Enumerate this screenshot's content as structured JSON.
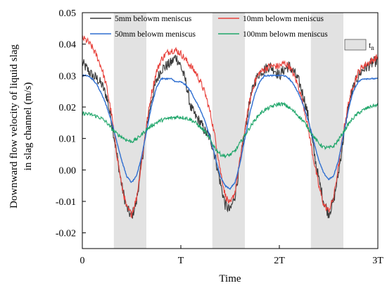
{
  "chart_data": {
    "type": "line",
    "xlabel": "Time",
    "ylabel": [
      "Downward flow velocity of liquid slag",
      "in slag channel (m/s)"
    ],
    "xlim": [
      0,
      3
    ],
    "ylim": [
      -0.025,
      0.05
    ],
    "x_ticks": [
      {
        "value": 0,
        "label": "0"
      },
      {
        "value": 1,
        "label": "T"
      },
      {
        "value": 2,
        "label": "2T"
      },
      {
        "value": 3,
        "label": "3T"
      }
    ],
    "y_ticks": [
      {
        "value": 0.05,
        "label": "0.05"
      },
      {
        "value": 0.04,
        "label": "0.04"
      },
      {
        "value": 0.03,
        "label": "0.03"
      },
      {
        "value": 0.02,
        "label": "0.02"
      },
      {
        "value": 0.01,
        "label": "0.01"
      },
      {
        "value": 0.0,
        "label": "0.00"
      },
      {
        "value": -0.01,
        "label": "-0.01"
      },
      {
        "value": -0.02,
        "label": "-0.02"
      }
    ],
    "shaded_regions": {
      "label": "t",
      "label_subscript": "n",
      "color": "#e2e2e2",
      "intervals": [
        [
          0.32,
          0.65
        ],
        [
          1.32,
          1.65
        ],
        [
          2.32,
          2.65
        ]
      ]
    },
    "grid": false,
    "legend_position": "top",
    "series": [
      {
        "name": "5mm belowm meniscus",
        "color": "#3a3a3a",
        "noise": 0.0018,
        "x": [
          0,
          0.05,
          0.1,
          0.15,
          0.2,
          0.25,
          0.3,
          0.35,
          0.4,
          0.45,
          0.5,
          0.55,
          0.6,
          0.65,
          0.7,
          0.75,
          0.8,
          0.85,
          0.9,
          0.95,
          1.0,
          1.05,
          1.1,
          1.15,
          1.2,
          1.25,
          1.3,
          1.35,
          1.4,
          1.45,
          1.5,
          1.55,
          1.6,
          1.65,
          1.7,
          1.75,
          1.8,
          1.85,
          1.9,
          1.95,
          2.0,
          2.05,
          2.1,
          2.15,
          2.2,
          2.25,
          2.3,
          2.35,
          2.4,
          2.45,
          2.5,
          2.55,
          2.6,
          2.65,
          2.7,
          2.75,
          2.8,
          2.85,
          2.9,
          2.95,
          3.0
        ],
        "y": [
          0.034,
          0.032,
          0.03,
          0.029,
          0.027,
          0.023,
          0.015,
          0.005,
          -0.005,
          -0.012,
          -0.015,
          -0.01,
          0.002,
          0.013,
          0.022,
          0.028,
          0.032,
          0.033,
          0.034,
          0.036,
          0.033,
          0.028,
          0.02,
          0.017,
          0.015,
          0.012,
          0.01,
          0.004,
          -0.004,
          -0.011,
          -0.013,
          -0.008,
          0.002,
          0.012,
          0.022,
          0.028,
          0.031,
          0.032,
          0.033,
          0.032,
          0.03,
          0.032,
          0.033,
          0.031,
          0.028,
          0.023,
          0.016,
          0.006,
          -0.003,
          -0.01,
          -0.014,
          -0.01,
          -0.001,
          0.01,
          0.02,
          0.026,
          0.03,
          0.032,
          0.033,
          0.034,
          0.035
        ]
      },
      {
        "name": "10mm belowm meniscus",
        "color": "#e8423c",
        "noise": 0.0011,
        "x": [
          0,
          0.05,
          0.1,
          0.15,
          0.2,
          0.25,
          0.3,
          0.35,
          0.4,
          0.45,
          0.5,
          0.55,
          0.6,
          0.65,
          0.7,
          0.75,
          0.8,
          0.85,
          0.9,
          0.95,
          1.0,
          1.05,
          1.1,
          1.15,
          1.2,
          1.25,
          1.3,
          1.35,
          1.4,
          1.45,
          1.5,
          1.55,
          1.6,
          1.65,
          1.7,
          1.75,
          1.8,
          1.85,
          1.9,
          1.95,
          2.0,
          2.05,
          2.1,
          2.15,
          2.2,
          2.25,
          2.3,
          2.35,
          2.4,
          2.45,
          2.5,
          2.55,
          2.6,
          2.65,
          2.7,
          2.75,
          2.8,
          2.85,
          2.9,
          2.95,
          3.0
        ],
        "y": [
          0.042,
          0.041,
          0.039,
          0.036,
          0.032,
          0.026,
          0.017,
          0.005,
          -0.005,
          -0.012,
          -0.014,
          -0.009,
          0.002,
          0.014,
          0.024,
          0.031,
          0.035,
          0.037,
          0.038,
          0.038,
          0.037,
          0.035,
          0.033,
          0.031,
          0.028,
          0.024,
          0.018,
          0.01,
          0.0,
          -0.008,
          -0.011,
          -0.007,
          0.003,
          0.013,
          0.022,
          0.028,
          0.031,
          0.032,
          0.033,
          0.033,
          0.033,
          0.034,
          0.033,
          0.03,
          0.026,
          0.02,
          0.012,
          0.003,
          -0.005,
          -0.011,
          -0.013,
          -0.009,
          0.001,
          0.012,
          0.021,
          0.027,
          0.031,
          0.033,
          0.034,
          0.035,
          0.036
        ]
      },
      {
        "name": "50mm belowm meniscus",
        "color": "#2f6fd1",
        "noise": 0.0002,
        "x": [
          0,
          0.05,
          0.1,
          0.15,
          0.2,
          0.25,
          0.3,
          0.35,
          0.4,
          0.45,
          0.5,
          0.55,
          0.6,
          0.65,
          0.7,
          0.75,
          0.8,
          0.85,
          0.9,
          0.95,
          1.0,
          1.05,
          1.1,
          1.15,
          1.2,
          1.25,
          1.3,
          1.35,
          1.4,
          1.45,
          1.5,
          1.55,
          1.6,
          1.65,
          1.7,
          1.75,
          1.8,
          1.85,
          1.9,
          1.95,
          2.0,
          2.05,
          2.1,
          2.15,
          2.2,
          2.25,
          2.3,
          2.35,
          2.4,
          2.45,
          2.5,
          2.55,
          2.6,
          2.65,
          2.7,
          2.75,
          2.8,
          2.85,
          2.9,
          2.95,
          3.0
        ],
        "y": [
          0.03,
          0.03,
          0.029,
          0.027,
          0.024,
          0.02,
          0.015,
          0.009,
          0.003,
          -0.002,
          -0.004,
          -0.002,
          0.004,
          0.012,
          0.02,
          0.026,
          0.029,
          0.029,
          0.029,
          0.028,
          0.028,
          0.027,
          0.025,
          0.022,
          0.019,
          0.015,
          0.01,
          0.004,
          -0.002,
          -0.005,
          -0.006,
          -0.004,
          0.002,
          0.01,
          0.018,
          0.024,
          0.028,
          0.03,
          0.03,
          0.03,
          0.03,
          0.03,
          0.029,
          0.027,
          0.024,
          0.02,
          0.015,
          0.009,
          0.003,
          -0.001,
          -0.003,
          -0.002,
          0.003,
          0.011,
          0.019,
          0.025,
          0.028,
          0.029,
          0.029,
          0.029,
          0.029
        ]
      },
      {
        "name": "100mm belowm meniscus",
        "color": "#1fa66a",
        "noise": 0.0006,
        "x": [
          0,
          0.05,
          0.1,
          0.15,
          0.2,
          0.25,
          0.3,
          0.35,
          0.4,
          0.45,
          0.5,
          0.55,
          0.6,
          0.65,
          0.7,
          0.75,
          0.8,
          0.85,
          0.9,
          0.95,
          1.0,
          1.05,
          1.1,
          1.15,
          1.2,
          1.25,
          1.3,
          1.35,
          1.4,
          1.45,
          1.5,
          1.55,
          1.6,
          1.65,
          1.7,
          1.75,
          1.8,
          1.85,
          1.9,
          1.95,
          2.0,
          2.05,
          2.1,
          2.15,
          2.2,
          2.25,
          2.3,
          2.35,
          2.4,
          2.45,
          2.5,
          2.55,
          2.6,
          2.65,
          2.7,
          2.75,
          2.8,
          2.85,
          2.9,
          2.95,
          3.0
        ],
        "y": [
          0.018,
          0.0178,
          0.0175,
          0.017,
          0.0163,
          0.015,
          0.013,
          0.0115,
          0.0105,
          0.0095,
          0.009,
          0.0098,
          0.0112,
          0.0128,
          0.014,
          0.015,
          0.0158,
          0.0162,
          0.0165,
          0.0168,
          0.0168,
          0.0165,
          0.016,
          0.015,
          0.0135,
          0.012,
          0.0095,
          0.0068,
          0.005,
          0.0044,
          0.0048,
          0.006,
          0.0085,
          0.011,
          0.0135,
          0.0158,
          0.0178,
          0.019,
          0.0198,
          0.0205,
          0.021,
          0.0208,
          0.0198,
          0.0185,
          0.017,
          0.0153,
          0.013,
          0.0105,
          0.0085,
          0.0072,
          0.007,
          0.0075,
          0.0095,
          0.012,
          0.0145,
          0.0165,
          0.018,
          0.019,
          0.0198,
          0.0204,
          0.0205
        ]
      }
    ]
  }
}
